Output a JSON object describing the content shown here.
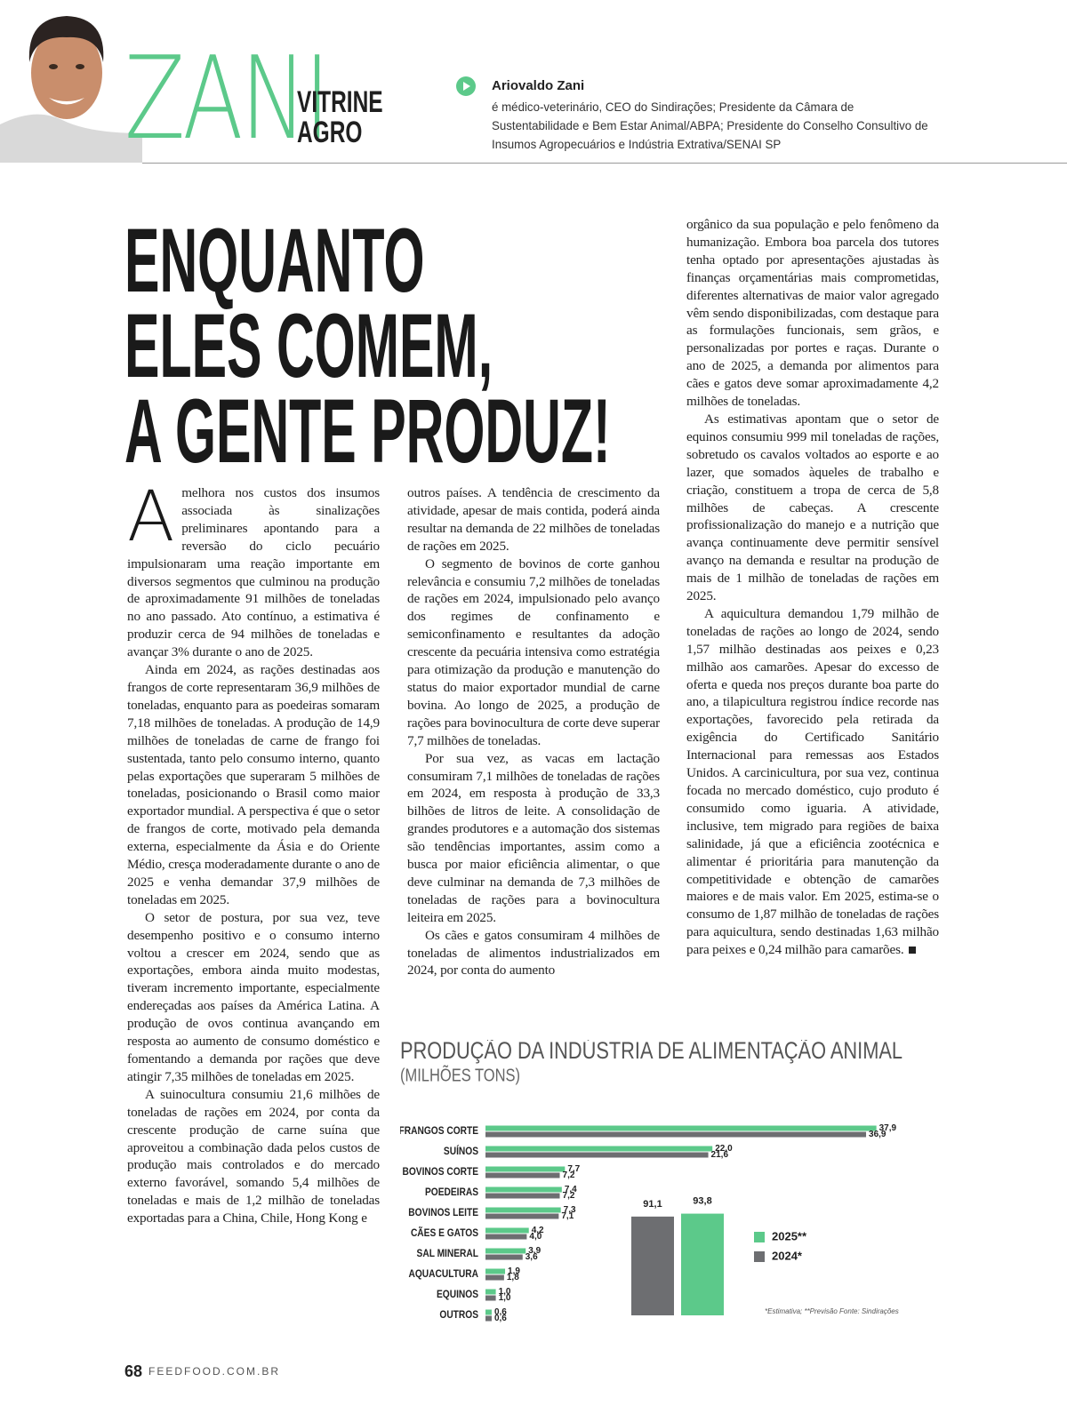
{
  "header": {
    "column_name": "ZANI",
    "section": [
      "VITRINE",
      "AGRO"
    ],
    "author_name": "Ariovaldo Zani",
    "author_bio": "é médico-veterinário, CEO do Sindirações; Presidente da Câmara de Sustentabilidade e Bem Estar Animal/ABPA; Presidente do Conselho Consultivo de Insumos Agropecuários e Indústria Extrativa/SENAI SP"
  },
  "article": {
    "title": [
      "ENQUANTO",
      "ELES COMEM,",
      "A GENTE PRODUZ!"
    ],
    "columns": [
      [
        "A melhora nos custos dos insumos associada às sinalizações preliminares apontando para a reversão do ciclo pecuário impulsionaram uma reação importante em diversos segmentos que culminou na produção de aproximadamente 91 milhões de toneladas no ano passado. Ato contínuo, a estimativa é produzir cerca de 94 milhões de toneladas e avançar 3% durante o ano de 2025.",
        "Ainda em 2024, as rações destinadas aos frangos de corte representaram 36,9 milhões de toneladas, enquanto para as poedeiras somaram 7,18 milhões de toneladas. A produção de 14,9 milhões de toneladas de carne de frango foi sustentada, tanto pelo consumo interno, quanto pelas exportações que superaram 5 milhões de toneladas, posicionando o Brasil como maior exportador mundial. A perspectiva é que o setor de frangos de corte, motivado pela demanda externa, especialmente da Ásia e do Oriente Médio, cresça moderadamente durante o ano de 2025 e venha demandar 37,9 milhões de toneladas em 2025.",
        "O setor de postura, por sua vez, teve desempenho positivo e o consumo interno voltou a crescer em 2024, sendo que as exportações, embora ainda muito modestas, tiveram incremento importante, especialmente endereçadas aos países da América Latina. A produção de ovos continua avançando em resposta ao aumento de consumo doméstico e fomentando a demanda por rações que deve atingir 7,35 milhões de toneladas em 2025.",
        "A suinocultura consumiu 21,6 milhões de toneladas de rações em 2024, por conta da crescente produção de carne suína que aproveitou a combinação dada pelos custos de produção mais controlados e do mercado externo favorável, somando 5,4 milhões de toneladas e mais de 1,2 milhão de toneladas exportadas para a China, Chile, Hong Kong e"
      ],
      [
        "outros países. A tendência de crescimento da atividade, apesar de mais contida, poderá ainda resultar na demanda de 22 milhões de toneladas de rações em 2025.",
        "O segmento de bovinos de corte ganhou relevância e consumiu 7,2 milhões de toneladas de rações em 2024, impulsionado pelo avanço dos regimes de confinamento e semiconfinamento e resultantes da adoção crescente da pecuária intensiva como estratégia para otimização da produção e manutenção do status do maior exportador mundial de carne bovina. Ao longo de 2025, a produção de rações para bovinocultura de corte deve superar 7,7 milhões de toneladas.",
        "Por sua vez, as vacas em lactação consumiram 7,1 milhões de toneladas de rações em 2024, em resposta à produção de 33,3 bilhões de litros de leite. A consolidação de grandes produtores e a automação dos sistemas são tendências importantes, assim como a busca por maior eficiência alimentar, o que deve culminar na demanda de 7,3 milhões de toneladas de rações para a bovinocultura leiteira em 2025.",
        "Os cães e gatos consumiram 4 milhões de toneladas de alimentos industrializados em 2024, por conta do aumento"
      ],
      [
        "orgânico da sua população e pelo fenômeno da humanização. Embora boa parcela dos tutores tenha optado por apresentações ajustadas às finanças orçamentárias mais comprometidas, diferentes alternativas de maior valor agregado vêm sendo disponibilizadas, com destaque para as formulações funcionais, sem grãos, e personalizadas por portes e raças. Durante o ano de 2025, a demanda por alimentos para cães e gatos deve somar aproximadamente 4,2 milhões de toneladas.",
        "As estimativas apontam que o setor de equinos consumiu 999 mil toneladas de rações, sobretudo os cavalos voltados ao esporte e ao lazer, que somados àqueles de trabalho e criação, constituem a tropa de cerca de 5,8 milhões de cabeças. A crescente profissionalização do manejo e a nutrição que avança continuamente deve permitir sensível avanço na demanda e resultar na produção de mais de 1 milhão de toneladas de rações em 2025.",
        "A aquicultura demandou 1,79 milhão de toneladas de rações ao longo de 2024, sendo 1,57 milhão destinadas aos peixes e 0,23 milhão aos camarões. Apesar do excesso de oferta e queda nos preços durante boa parte do ano, a tilapicultura registrou índice recorde nas exportações, favorecido pela retirada da exigência do Certificado Sanitário Internacional para remessas aos Estados Unidos. A carcinicultura, por sua vez, continua focada no mercado doméstico, cujo produto é consumido como iguaria. A atividade, inclusive, tem migrado para regiões de baixa salinidade, já que a eficiência zootécnica e alimentar é prioritária para manutenção da competitividade e obtenção de camarões maiores e de mais valor. Em 2025, estima-se o consumo de 1,87 milhão de toneladas de rações para aquicultura, sendo destinadas 1,63 milhão para peixes e 0,24 milhão para camarões."
      ]
    ]
  },
  "chart_data": {
    "type": "bar",
    "orientation": "horizontal",
    "title": "PRODUÇÃO DA INDÚSTRIA DE ALIMENTAÇÃO ANIMAL",
    "subtitle": "(MILHÕES TONS)",
    "categories": [
      "FRANGOS CORTE",
      "SUÍNOS",
      "BOVINOS CORTE",
      "POEDEIRAS",
      "BOVINOS LEITE",
      "CÃES E GATOS",
      "SAL MINERAL",
      "AQUACULTURA",
      "EQUINOS",
      "OUTROS"
    ],
    "series": [
      {
        "name": "2025**",
        "color": "#5cc98a",
        "values": [
          37.9,
          22.0,
          7.7,
          7.4,
          7.3,
          4.2,
          3.9,
          1.9,
          1.0,
          0.6
        ],
        "value_labels": [
          "37,9",
          "22,0",
          "7,7",
          "7,4",
          "7,3",
          "4,2",
          "3,9",
          "1,9",
          "1,0",
          "0,6"
        ],
        "total": 93.8,
        "total_label": "93,8"
      },
      {
        "name": "2024*",
        "color": "#6d6e71",
        "values": [
          36.9,
          21.6,
          7.2,
          7.2,
          7.1,
          4.0,
          3.6,
          1.8,
          1.0,
          0.6
        ],
        "value_labels": [
          "36,9",
          "21,6",
          "7,2",
          "7,2",
          "7,1",
          "4,0",
          "3,6",
          "1,8",
          "1,0",
          "0,6"
        ],
        "total": 91.1,
        "total_label": "91,1"
      }
    ],
    "note": "*Estimativa; **Previsão   Fonte: Sindirações"
  },
  "footer": {
    "page_number": "68",
    "site": "FEEDFOOD.COM.BR"
  }
}
